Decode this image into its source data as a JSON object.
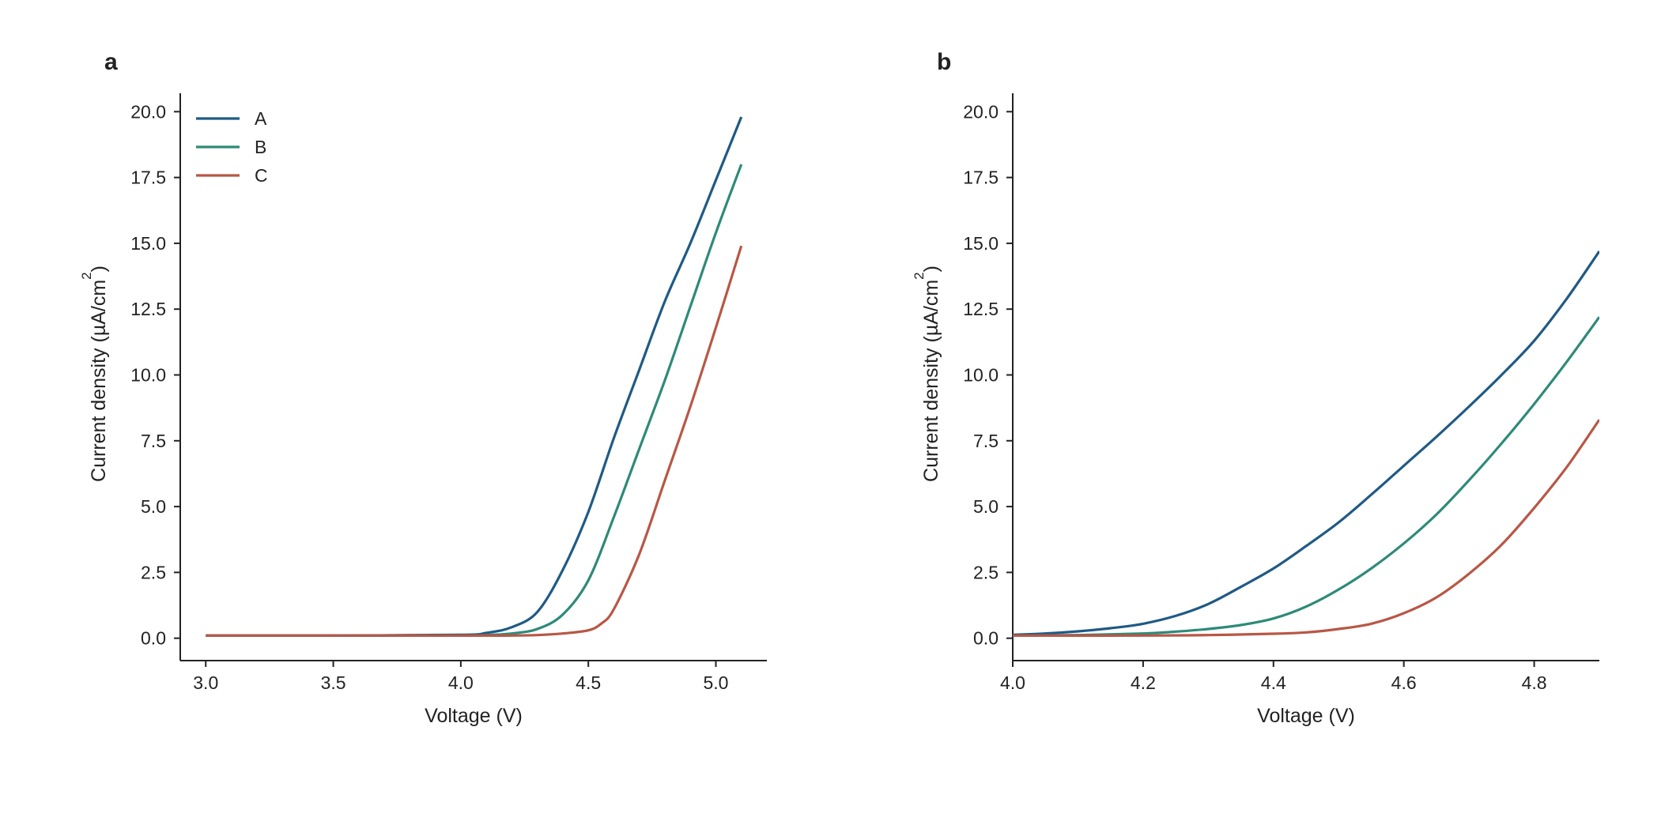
{
  "figure": {
    "series_colors": {
      "A": "#1f5a85",
      "B": "#2e8a78",
      "C": "#b85746"
    }
  },
  "chart_data": [
    {
      "panel": "a",
      "type": "line",
      "xlabel": "Voltage (V)",
      "ylabel_main": "Current density (µA/cm",
      "ylabel_sup": "2",
      "ylabel_close": ")",
      "xlim": [
        2.9,
        5.2
      ],
      "ylim": [
        -0.85,
        20.7
      ],
      "xticks": [
        3.0,
        3.5,
        4.0,
        4.5,
        5.0
      ],
      "xtick_labels": [
        "3.0",
        "3.5",
        "4.0",
        "4.5",
        "5.0"
      ],
      "yticks": [
        0.0,
        2.5,
        5.0,
        7.5,
        10.0,
        12.5,
        15.0,
        17.5,
        20.0
      ],
      "ytick_labels": [
        "0.0",
        "2.5",
        "5.0",
        "7.5",
        "10.0",
        "12.5",
        "15.0",
        "17.5",
        "20.0"
      ],
      "grid": false,
      "legend": {
        "position": "top-left",
        "entries": [
          "A",
          "B",
          "C"
        ]
      },
      "series": [
        {
          "name": "A",
          "color": "#1f5a85",
          "x": [
            3.0,
            3.5,
            4.0,
            4.1,
            4.2,
            4.3,
            4.4,
            4.5,
            4.6,
            4.7,
            4.8,
            4.9,
            5.0,
            5.1
          ],
          "y": [
            0.1,
            0.1,
            0.13,
            0.2,
            0.42,
            1.0,
            2.6,
            4.8,
            7.6,
            10.2,
            12.8,
            15.0,
            17.4,
            19.8
          ]
        },
        {
          "name": "B",
          "color": "#2e8a78",
          "x": [
            3.0,
            3.5,
            4.0,
            4.1,
            4.2,
            4.3,
            4.4,
            4.5,
            4.6,
            4.7,
            4.8,
            4.9,
            5.0,
            5.1
          ],
          "y": [
            0.1,
            0.1,
            0.1,
            0.12,
            0.18,
            0.35,
            0.9,
            2.2,
            4.6,
            7.2,
            9.8,
            12.6,
            15.4,
            18.0
          ]
        },
        {
          "name": "C",
          "color": "#b85746",
          "x": [
            3.0,
            3.5,
            4.0,
            4.2,
            4.3,
            4.4,
            4.5,
            4.55,
            4.6,
            4.7,
            4.8,
            4.9,
            5.0,
            5.1
          ],
          "y": [
            0.1,
            0.1,
            0.1,
            0.1,
            0.12,
            0.18,
            0.3,
            0.55,
            1.1,
            3.2,
            6.0,
            8.8,
            11.8,
            14.9
          ]
        }
      ]
    },
    {
      "panel": "b",
      "type": "line",
      "xlabel": "Voltage (V)",
      "ylabel_main": "Current density (µA/cm",
      "ylabel_sup": "2",
      "ylabel_close": ")",
      "xlim": [
        4.0,
        4.9
      ],
      "ylim": [
        -0.85,
        20.7
      ],
      "xticks": [
        4.0,
        4.2,
        4.4,
        4.6,
        4.8
      ],
      "xtick_labels": [
        "4.0",
        "4.2",
        "4.4",
        "4.6",
        "4.8"
      ],
      "yticks": [
        0.0,
        2.5,
        5.0,
        7.5,
        10.0,
        12.5,
        15.0,
        17.5,
        20.0
      ],
      "ytick_labels": [
        "0.0",
        "2.5",
        "5.0",
        "7.5",
        "10.0",
        "12.5",
        "15.0",
        "17.5",
        "20.0"
      ],
      "grid": false,
      "series": [
        {
          "name": "A",
          "color": "#1f5a85",
          "x": [
            4.0,
            4.05,
            4.1,
            4.15,
            4.2,
            4.25,
            4.3,
            4.35,
            4.4,
            4.45,
            4.5,
            4.55,
            4.6,
            4.65,
            4.7,
            4.75,
            4.8,
            4.85,
            4.9
          ],
          "y": [
            0.13,
            0.18,
            0.26,
            0.38,
            0.55,
            0.85,
            1.3,
            1.95,
            2.65,
            3.5,
            4.4,
            5.45,
            6.55,
            7.65,
            8.8,
            10.0,
            11.3,
            12.9,
            14.7
          ]
        },
        {
          "name": "B",
          "color": "#2e8a78",
          "x": [
            4.0,
            4.1,
            4.2,
            4.25,
            4.3,
            4.35,
            4.4,
            4.45,
            4.5,
            4.55,
            4.6,
            4.65,
            4.7,
            4.75,
            4.8,
            4.85,
            4.9
          ],
          "y": [
            0.1,
            0.12,
            0.18,
            0.25,
            0.35,
            0.5,
            0.75,
            1.2,
            1.85,
            2.65,
            3.6,
            4.7,
            6.0,
            7.4,
            8.9,
            10.5,
            12.2
          ]
        },
        {
          "name": "C",
          "color": "#b85746",
          "x": [
            4.0,
            4.2,
            4.3,
            4.4,
            4.45,
            4.5,
            4.55,
            4.6,
            4.65,
            4.7,
            4.75,
            4.8,
            4.85,
            4.9
          ],
          "y": [
            0.1,
            0.1,
            0.12,
            0.17,
            0.22,
            0.35,
            0.55,
            0.95,
            1.55,
            2.45,
            3.55,
            4.95,
            6.5,
            8.3
          ]
        }
      ]
    }
  ]
}
